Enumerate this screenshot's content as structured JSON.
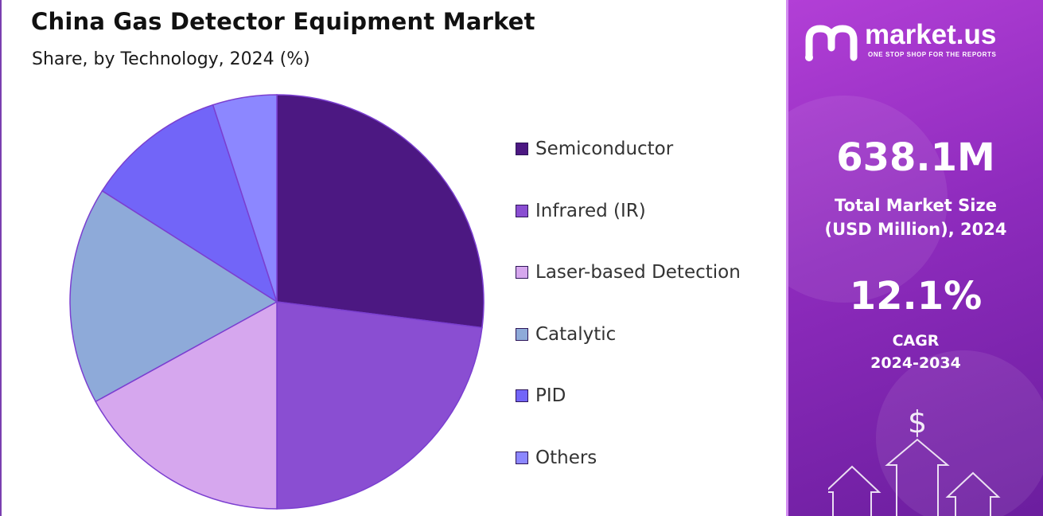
{
  "header": {
    "title": "China Gas Detector Equipment Market",
    "subtitle": "Share, by Technology, 2024 (%)"
  },
  "chart_data": {
    "type": "pie",
    "categories": [
      "Semiconductor",
      "Infrared (IR)",
      "Laser-based Detection",
      "Catalytic",
      "PID",
      "Others"
    ],
    "values": [
      27,
      23,
      17,
      17,
      11,
      5
    ],
    "colors": [
      "#4c1882",
      "#8a4ed2",
      "#d6a7ee",
      "#8eaad9",
      "#7265f8",
      "#8c87ff"
    ],
    "legend_position": "right"
  },
  "brand": {
    "name": "market.us",
    "tagline": "ONE STOP SHOP FOR THE REPORTS"
  },
  "stats": {
    "market_size": "638.1M",
    "market_size_label_line1": "Total Market Size",
    "market_size_label_line2": "(USD Million), 2024",
    "cagr": "12.1%",
    "cagr_label_line1": "CAGR",
    "cagr_label_line2": "2024-2034"
  },
  "decor": {
    "currency_symbol": "$"
  }
}
